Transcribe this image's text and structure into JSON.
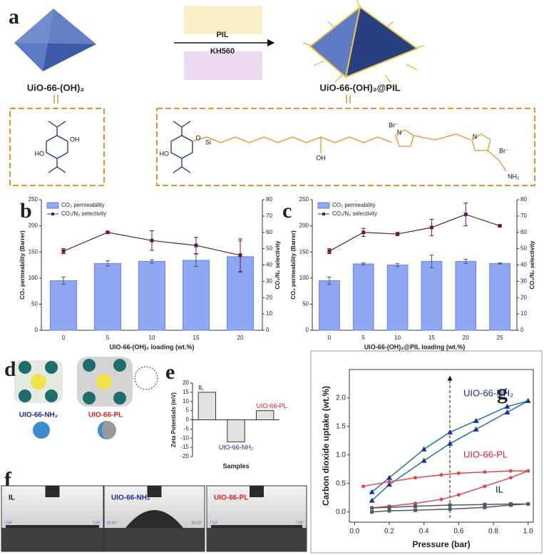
{
  "panel_a": {
    "label": "a",
    "left_name": "UiO-66-(OH)₂",
    "right_name": "UiO-66-(OH)₂@PIL",
    "reagent_top": "PIL",
    "reagent_bottom": "KH560",
    "left_structure": [
      "OH",
      "HO"
    ],
    "right_structure": [
      "HO",
      "O",
      "Si",
      "OH",
      "N",
      "Br⁻",
      "N",
      "Br⁻",
      "NH₂"
    ]
  },
  "panel_d": {
    "label": "d",
    "names": [
      "UIO-66-NH₂",
      "UIO-66-PL"
    ]
  },
  "panel_f": {
    "label": "f",
    "names": [
      "IL",
      "UIO-66-NH₂",
      "UIO-66-PL"
    ],
    "angles": [
      [
        "7.59°",
        "7.69°"
      ],
      [
        "66.53°",
        "66.53°"
      ],
      [
        "7.53°",
        "7.59°"
      ]
    ]
  },
  "chart_data": [
    {
      "type": "bar",
      "panel_label": "b",
      "categories": [
        "0",
        "5",
        "10",
        "15",
        "20"
      ],
      "x_label": "UiO-66-(OH)₂ loading (wt.%)",
      "y_label": "CO₂ permeability (Barrer)",
      "y2_label": "CO₂/N₂ selectivity",
      "ylim": [
        0,
        250
      ],
      "yticks": [
        0,
        50,
        100,
        150,
        200,
        250
      ],
      "y2lim": [
        0,
        80
      ],
      "y2ticks": [
        0,
        10,
        20,
        30,
        40,
        50,
        60,
        70,
        80
      ],
      "legend": "upper left",
      "series": [
        {
          "name": "CO₂ permeability",
          "color": "#8fa6f2",
          "values": [
            95,
            128,
            132,
            134,
            141
          ],
          "errors": [
            7,
            5,
            3,
            12,
            30
          ]
        },
        {
          "name": "CO₂/N₂ selectivity",
          "color": "#5e1b4f",
          "axis": "y2",
          "values": [
            48.5,
            60,
            55,
            52,
            46
          ],
          "errors": [
            1.5,
            0.5,
            6,
            5,
            10
          ]
        }
      ]
    },
    {
      "type": "bar",
      "panel_label": "c",
      "categories": [
        "0",
        "5",
        "10",
        "15",
        "20",
        "25"
      ],
      "x_label": "UiO-66-(OH)₂@PIL loading (wt.%)",
      "y_label": "CO₂ permeability (Barrer)",
      "y2_label": "CO₂/N₂ selectivity",
      "ylim": [
        0,
        250
      ],
      "yticks": [
        0,
        50,
        100,
        150,
        200,
        250
      ],
      "y2lim": [
        0,
        80
      ],
      "y2ticks": [
        0,
        10,
        20,
        30,
        40,
        50,
        60,
        70,
        80
      ],
      "legend": "upper left",
      "series": [
        {
          "name": "CO₂ permeability",
          "color": "#8fa6f2",
          "values": [
            95,
            127,
            125,
            132,
            132,
            128
          ],
          "errors": [
            7,
            2,
            3,
            12,
            4,
            1
          ]
        },
        {
          "name": "CO₂/N₂ selectivity",
          "color": "#5e1b4f",
          "axis": "y2",
          "values": [
            48.5,
            60,
            59,
            63,
            71,
            64
          ],
          "errors": [
            1.5,
            2.5,
            1,
            5,
            7,
            0.5
          ]
        }
      ]
    },
    {
      "type": "bar",
      "panel_label": "e",
      "categories": [
        "IL",
        "UIO-66-NH₂",
        "UIO-66-PL"
      ],
      "category_colors": [
        "#111111",
        "#1c2a8c",
        "#d42424"
      ],
      "values": [
        15,
        -12,
        5
      ],
      "color": "#e2e2e2",
      "x_label": "Samples",
      "y_label": "Zeta Potentials (mV)",
      "ylim": [
        -20,
        20
      ],
      "yticks": [
        -20,
        -15,
        -10,
        -5,
        0,
        5,
        10,
        15,
        20
      ]
    },
    {
      "type": "line",
      "panel_label": "g",
      "x_label": "Pressure (bar)",
      "y_label": "Carbon dioxide uptake (wt.%)",
      "xlim": [
        -0.03,
        1.03
      ],
      "xticks": [
        {
          "value": 0,
          "label": "0.0"
        },
        0.2,
        0.4,
        0.6,
        0.8,
        {
          "value": 1,
          "label": "1.0"
        }
      ],
      "ylim": [
        -0.18,
        2.5
      ],
      "yticks": [
        {
          "value": 0,
          "label": "0.0"
        },
        0.5,
        {
          "value": 1,
          "label": "1.0"
        },
        1.5,
        {
          "value": 2,
          "label": "2.0"
        }
      ],
      "series": [
        {
          "name": "UIO-66-NH₂",
          "color": "#2a6f9e",
          "label_color": "#1c2a8c",
          "marker": "triangle",
          "x": [
            0.1,
            0.2,
            0.4,
            0.55,
            0.7,
            0.88,
            1.0,
            0.88,
            0.7,
            0.55,
            0.4,
            0.2,
            0.1
          ],
          "values": [
            0.2,
            0.48,
            0.9,
            1.2,
            1.45,
            1.75,
            1.95,
            1.85,
            1.6,
            1.4,
            1.1,
            0.6,
            0.35
          ]
        },
        {
          "name": "UIO-66-PL",
          "color": "#e0474c",
          "label_color": "#d42424",
          "marker": "circle",
          "x": [
            0.05,
            0.2,
            0.35,
            0.5,
            0.6,
            0.75,
            0.9,
            1.0,
            0.9,
            0.75,
            0.6,
            0.5,
            0.35,
            0.2,
            0.1
          ],
          "values": [
            0.45,
            0.53,
            0.6,
            0.65,
            0.68,
            0.7,
            0.72,
            0.72,
            0.6,
            0.45,
            0.3,
            0.22,
            0.15,
            0.1,
            0.07
          ]
        },
        {
          "name": "IL",
          "color": "#555566",
          "label_color": "#111111",
          "marker": "square",
          "x": [
            0.1,
            0.2,
            0.35,
            0.55,
            0.75,
            0.9,
            1.0,
            0.9,
            0.75,
            0.55,
            0.35,
            0.2,
            0.1
          ],
          "values": [
            0.0,
            0.02,
            0.03,
            0.05,
            0.08,
            0.12,
            0.14,
            0.14,
            0.13,
            0.12,
            0.1,
            0.08,
            0.07
          ]
        }
      ]
    }
  ]
}
